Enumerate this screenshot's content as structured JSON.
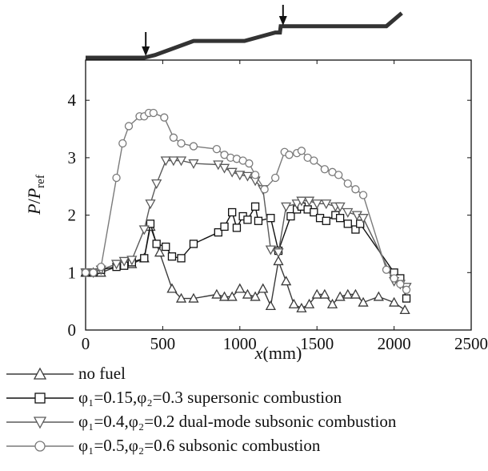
{
  "chart_data": {
    "type": "line",
    "xlabel_italic": "x",
    "xlabel_unit": "(mm)",
    "ylabel_main": "P",
    "ylabel_sep": "/",
    "ylabel_ref_p": "P",
    "ylabel_ref_sub": "ref",
    "xlim": [
      0,
      2500
    ],
    "ylim": [
      0,
      4.7
    ],
    "xticks": [
      "0",
      "500",
      "1000",
      "1500",
      "2000",
      "2500"
    ],
    "xtick_values": [
      0,
      500,
      1000,
      1500,
      2000,
      2500
    ],
    "yticks": [
      "0",
      "1",
      "2",
      "3",
      "4"
    ],
    "ytick_values": [
      0,
      1,
      2,
      3,
      4
    ],
    "arrow_positions_x": [
      390,
      1280
    ],
    "geometry_profile": [
      [
        0,
        0
      ],
      [
        380,
        0
      ],
      [
        450,
        0.05
      ],
      [
        700,
        0.32
      ],
      [
        1030,
        0.32
      ],
      [
        1230,
        0.48
      ],
      [
        1260,
        0.48
      ],
      [
        1265,
        0.6
      ],
      [
        1300,
        0.6
      ],
      [
        1950,
        0.6
      ],
      [
        2050,
        0.85
      ]
    ],
    "series": [
      {
        "key": "no_fuel",
        "marker": "triangle-up",
        "color": "#3a3a3a",
        "x": [
          0,
          50,
          100,
          250,
          300,
          380,
          420,
          480,
          560,
          620,
          700,
          850,
          900,
          950,
          1000,
          1050,
          1100,
          1150,
          1200,
          1250,
          1300,
          1350,
          1400,
          1450,
          1500,
          1550,
          1600,
          1650,
          1700,
          1750,
          1800,
          1900,
          2000,
          2070
        ],
        "y": [
          1.0,
          1.0,
          1.0,
          1.15,
          1.15,
          1.25,
          1.8,
          1.35,
          0.72,
          0.55,
          0.55,
          0.62,
          0.58,
          0.58,
          0.72,
          0.62,
          0.58,
          0.72,
          0.42,
          1.2,
          0.85,
          0.45,
          0.38,
          0.45,
          0.62,
          0.62,
          0.45,
          0.58,
          0.62,
          0.62,
          0.48,
          0.58,
          0.48,
          0.35
        ]
      },
      {
        "key": "supersonic",
        "marker": "square",
        "color": "#111111",
        "x": [
          0,
          50,
          100,
          200,
          250,
          300,
          380,
          420,
          460,
          520,
          560,
          620,
          700,
          860,
          900,
          950,
          980,
          1020,
          1050,
          1100,
          1120,
          1200,
          1250,
          1330,
          1370,
          1400,
          1440,
          1480,
          1520,
          1560,
          1620,
          1650,
          1700,
          1750,
          1780,
          2000,
          2040,
          2080
        ],
        "y": [
          1.0,
          1.0,
          1.05,
          1.1,
          1.12,
          1.18,
          1.25,
          1.85,
          1.5,
          1.45,
          1.28,
          1.25,
          1.5,
          1.7,
          1.8,
          2.05,
          1.78,
          1.98,
          1.92,
          2.15,
          1.9,
          1.95,
          1.38,
          1.98,
          2.1,
          2.15,
          2.1,
          2.05,
          1.95,
          1.9,
          2.0,
          1.95,
          1.85,
          1.75,
          1.85,
          1.0,
          0.9,
          0.55
        ]
      },
      {
        "key": "dual_mode",
        "marker": "triangle-down",
        "color": "#5a5a5a",
        "x": [
          0,
          50,
          100,
          200,
          250,
          300,
          380,
          420,
          460,
          520,
          570,
          620,
          700,
          860,
          900,
          950,
          1000,
          1050,
          1100,
          1150,
          1200,
          1250,
          1300,
          1370,
          1400,
          1450,
          1500,
          1560,
          1620,
          1650,
          1700,
          1760,
          1800,
          2000,
          2040,
          2080
        ],
        "y": [
          1.0,
          1.0,
          1.05,
          1.15,
          1.2,
          1.22,
          1.75,
          2.2,
          2.55,
          2.95,
          2.95,
          2.95,
          2.9,
          2.88,
          2.82,
          2.75,
          2.7,
          2.68,
          2.6,
          2.45,
          1.4,
          1.35,
          2.15,
          2.2,
          2.25,
          2.25,
          2.2,
          2.2,
          2.15,
          2.15,
          2.05,
          2.0,
          1.95,
          0.85,
          0.8,
          0.75
        ]
      },
      {
        "key": "subsonic",
        "marker": "circle",
        "color": "#7a7a7a",
        "x": [
          0,
          50,
          100,
          200,
          240,
          280,
          350,
          380,
          410,
          440,
          510,
          570,
          620,
          700,
          850,
          900,
          940,
          980,
          1020,
          1060,
          1100,
          1160,
          1230,
          1290,
          1320,
          1370,
          1400,
          1440,
          1480,
          1550,
          1600,
          1640,
          1700,
          1750,
          1800,
          1950,
          2000,
          2040,
          2080
        ],
        "y": [
          1.0,
          1.0,
          1.1,
          2.65,
          3.25,
          3.55,
          3.72,
          3.72,
          3.78,
          3.78,
          3.7,
          3.35,
          3.25,
          3.2,
          3.15,
          3.05,
          3.0,
          2.98,
          2.95,
          2.9,
          2.7,
          2.45,
          2.65,
          3.1,
          3.05,
          3.08,
          3.12,
          3.0,
          2.95,
          2.8,
          2.75,
          2.7,
          2.55,
          2.45,
          2.35,
          1.05,
          0.9,
          0.8,
          0.7
        ]
      }
    ],
    "legend": [
      {
        "text": "no fuel"
      },
      {
        "text": "φ₁=0.15,φ₂=0.3 supersonic combustion"
      },
      {
        "text": "φ₁=0.4,φ₂=0.2 dual-mode subsonic combustion"
      },
      {
        "text": "φ₁=0.5,φ₂=0.6 subsonic combustion"
      }
    ]
  }
}
